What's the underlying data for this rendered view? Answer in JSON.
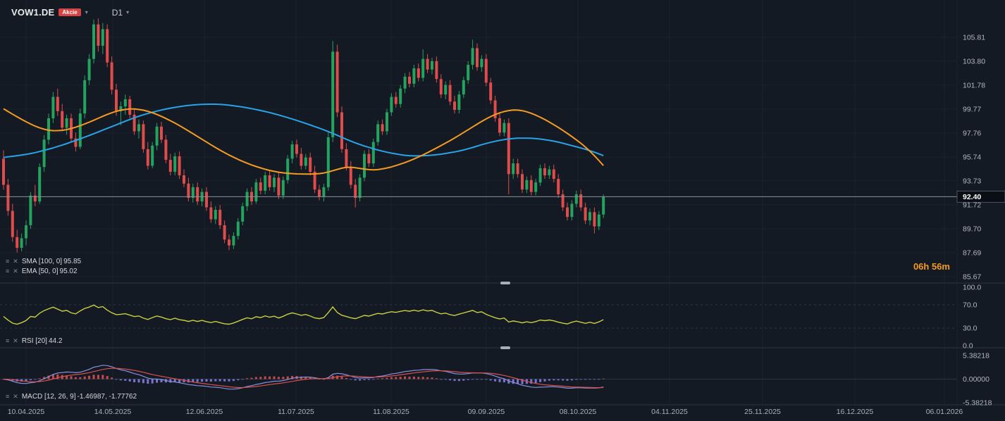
{
  "header": {
    "symbol": "VOW1.DE",
    "badge": "Akcie",
    "timeframe": "D1"
  },
  "legends": {
    "sma": {
      "label": "SMA [100, 0]",
      "value": "95.85"
    },
    "ema": {
      "label": "EMA [50, 0]",
      "value": "95.02"
    },
    "rsi": {
      "label": "RSI [20]",
      "value": "44.2"
    },
    "macd": {
      "label": "MACD [12, 26, 9]",
      "value": "-1.46987,  -1.77762"
    }
  },
  "countdown": "06h 56m",
  "colors": {
    "background": "#131a23",
    "grid": "#1c232e",
    "separator": "#2c3443",
    "axis_text": "#b2b6bf",
    "date_text": "#aab0ba",
    "legend_text": "#d6d9de",
    "symbol_text": "#e8eaed",
    "badge_red": "#d64242",
    "candle_up": "#24a35f",
    "candle_down": "#e04b4b",
    "sma_blue": "#2aa2e8",
    "ema_orange": "#f59a23",
    "rsi_yellow": "#c9cf42",
    "macd_line_blue": "#8691dc",
    "macd_signal_red": "#d94f4f",
    "hist_positive": "#c34b4b",
    "hist_negative": "#7a74cf",
    "price_line": "#8b909b",
    "current_price_bg": "#0b0e14",
    "current_price_text": "#ffffff",
    "accent_orange": "#f59a23"
  },
  "chart_data": {
    "type": "candlestick",
    "symbol": "VOW1.DE",
    "timeframe": "D1",
    "title": "VOW1.DE daily candlesticks with SMA(100), EMA(50), RSI(20) and MACD(12,26,9)",
    "ylim": [
      85.67,
      107.5
    ],
    "price_ticks": [
      105.81,
      103.8,
      101.78,
      99.77,
      97.76,
      95.74,
      93.73,
      91.72,
      89.7,
      87.69,
      85.67
    ],
    "current_price": 92.4,
    "x_labels": [
      "10.04.2025",
      "14.05.2025",
      "12.06.2025",
      "11.07.2025",
      "11.08.2025",
      "09.09.2025",
      "08.10.2025",
      "04.11.2025",
      "25.11.2025",
      "16.12.2025",
      "06.01.2026"
    ],
    "candles": [
      [
        95.6,
        96.3,
        93.0,
        93.4
      ],
      [
        93.4,
        93.9,
        90.8,
        91.2
      ],
      [
        91.2,
        91.8,
        88.6,
        89.0
      ],
      [
        89.0,
        89.6,
        87.7,
        88.1
      ],
      [
        88.1,
        89.3,
        87.8,
        88.9
      ],
      [
        88.9,
        90.4,
        88.3,
        90.0
      ],
      [
        90.0,
        92.8,
        89.7,
        92.5
      ],
      [
        92.5,
        93.4,
        91.6,
        92.0
      ],
      [
        92.0,
        95.2,
        91.8,
        94.9
      ],
      [
        94.9,
        97.6,
        94.5,
        97.2
      ],
      [
        97.2,
        99.4,
        96.8,
        99.0
      ],
      [
        99.0,
        101.2,
        98.6,
        100.8
      ],
      [
        100.8,
        101.5,
        99.2,
        99.6
      ],
      [
        99.6,
        100.2,
        97.9,
        98.2
      ],
      [
        98.2,
        99.3,
        97.6,
        99.0
      ],
      [
        99.0,
        99.4,
        97.0,
        97.3
      ],
      [
        97.3,
        97.8,
        96.2,
        96.6
      ],
      [
        96.6,
        99.8,
        96.4,
        99.4
      ],
      [
        99.4,
        102.6,
        99.0,
        102.2
      ],
      [
        102.2,
        104.4,
        101.8,
        104.0
      ],
      [
        104.0,
        107.3,
        103.6,
        106.9
      ],
      [
        106.9,
        107.4,
        104.6,
        105.1
      ],
      [
        105.1,
        107.0,
        104.4,
        106.5
      ],
      [
        106.5,
        106.9,
        103.3,
        103.7
      ],
      [
        103.7,
        104.2,
        101.0,
        101.4
      ],
      [
        101.4,
        101.9,
        99.2,
        99.6
      ],
      [
        99.6,
        100.4,
        98.4,
        100.0
      ],
      [
        100.0,
        101.0,
        99.3,
        100.6
      ],
      [
        100.6,
        100.9,
        99.0,
        99.3
      ],
      [
        99.3,
        99.8,
        97.6,
        97.9
      ],
      [
        97.9,
        98.9,
        97.3,
        98.5
      ],
      [
        98.5,
        98.8,
        96.1,
        96.4
      ],
      [
        96.4,
        97.0,
        94.7,
        95.0
      ],
      [
        95.0,
        97.0,
        94.8,
        96.7
      ],
      [
        96.7,
        98.6,
        96.3,
        98.3
      ],
      [
        98.3,
        98.7,
        96.9,
        97.2
      ],
      [
        97.2,
        97.6,
        95.2,
        95.5
      ],
      [
        95.5,
        96.0,
        94.2,
        94.5
      ],
      [
        94.5,
        96.1,
        94.2,
        95.8
      ],
      [
        95.8,
        96.2,
        93.9,
        94.2
      ],
      [
        94.2,
        94.7,
        93.2,
        93.5
      ],
      [
        93.5,
        94.0,
        92.0,
        92.3
      ],
      [
        92.3,
        93.5,
        91.9,
        93.2
      ],
      [
        93.2,
        93.6,
        91.7,
        92.0
      ],
      [
        92.0,
        93.1,
        91.6,
        92.8
      ],
      [
        92.8,
        93.2,
        91.2,
        91.5
      ],
      [
        91.5,
        92.0,
        90.2,
        90.5
      ],
      [
        90.5,
        91.6,
        90.1,
        91.3
      ],
      [
        91.3,
        91.7,
        89.7,
        90.0
      ],
      [
        90.0,
        90.4,
        88.5,
        88.8
      ],
      [
        88.8,
        89.2,
        87.9,
        88.3
      ],
      [
        88.3,
        89.4,
        88.0,
        89.1
      ],
      [
        89.1,
        90.6,
        88.8,
        90.3
      ],
      [
        90.3,
        91.9,
        90.0,
        91.6
      ],
      [
        91.6,
        93.1,
        91.2,
        92.8
      ],
      [
        92.8,
        93.2,
        91.7,
        92.0
      ],
      [
        92.0,
        93.9,
        91.8,
        93.6
      ],
      [
        93.6,
        94.0,
        92.6,
        92.9
      ],
      [
        92.9,
        94.5,
        92.6,
        94.2
      ],
      [
        94.2,
        94.6,
        92.9,
        93.2
      ],
      [
        93.2,
        94.3,
        92.8,
        94.0
      ],
      [
        94.0,
        94.4,
        92.2,
        92.5
      ],
      [
        92.5,
        94.1,
        92.2,
        93.8
      ],
      [
        93.8,
        95.9,
        93.5,
        95.6
      ],
      [
        95.6,
        97.1,
        95.2,
        96.8
      ],
      [
        96.8,
        97.2,
        95.7,
        96.0
      ],
      [
        96.0,
        96.5,
        94.7,
        95.0
      ],
      [
        95.0,
        96.0,
        94.7,
        95.7
      ],
      [
        95.7,
        96.1,
        94.2,
        94.5
      ],
      [
        94.5,
        95.0,
        92.7,
        93.0
      ],
      [
        93.0,
        93.4,
        92.1,
        92.4
      ],
      [
        92.4,
        93.5,
        92.0,
        93.2
      ],
      [
        93.2,
        97.8,
        92.9,
        97.4
      ],
      [
        97.4,
        105.5,
        97.0,
        104.6
      ],
      [
        104.6,
        105.2,
        99.1,
        99.5
      ],
      [
        99.5,
        100.0,
        96.1,
        96.4
      ],
      [
        96.4,
        96.9,
        94.6,
        94.9
      ],
      [
        94.9,
        95.4,
        93.1,
        93.4
      ],
      [
        93.4,
        93.9,
        91.5,
        92.3
      ],
      [
        92.3,
        94.3,
        92.0,
        94.0
      ],
      [
        94.0,
        96.3,
        93.7,
        96.0
      ],
      [
        96.0,
        96.4,
        94.9,
        95.2
      ],
      [
        95.2,
        97.3,
        94.9,
        97.0
      ],
      [
        97.0,
        98.8,
        96.7,
        98.5
      ],
      [
        98.5,
        98.9,
        97.6,
        97.9
      ],
      [
        97.9,
        99.8,
        97.6,
        99.5
      ],
      [
        99.5,
        101.1,
        99.2,
        100.8
      ],
      [
        100.8,
        101.2,
        99.9,
        100.2
      ],
      [
        100.2,
        101.8,
        99.9,
        101.5
      ],
      [
        101.5,
        102.8,
        101.1,
        102.5
      ],
      [
        102.5,
        102.9,
        101.6,
        101.9
      ],
      [
        101.9,
        103.5,
        101.6,
        103.2
      ],
      [
        103.2,
        103.6,
        102.1,
        102.4
      ],
      [
        102.4,
        104.8,
        102.1,
        104.0
      ],
      [
        104.0,
        104.4,
        102.8,
        103.1
      ],
      [
        103.1,
        104.1,
        102.7,
        103.8
      ],
      [
        103.8,
        104.2,
        102.0,
        102.3
      ],
      [
        102.3,
        102.7,
        100.7,
        101.0
      ],
      [
        101.0,
        102.1,
        100.6,
        101.8
      ],
      [
        101.8,
        102.2,
        100.1,
        100.4
      ],
      [
        100.4,
        100.9,
        99.4,
        99.7
      ],
      [
        99.7,
        101.3,
        99.4,
        101.0
      ],
      [
        101.0,
        102.5,
        100.7,
        102.2
      ],
      [
        102.2,
        103.8,
        101.9,
        103.5
      ],
      [
        103.5,
        105.6,
        103.1,
        104.9
      ],
      [
        104.9,
        105.3,
        103.0,
        103.3
      ],
      [
        103.3,
        104.3,
        102.9,
        104.0
      ],
      [
        104.0,
        104.4,
        101.7,
        102.0
      ],
      [
        102.0,
        102.4,
        100.2,
        100.5
      ],
      [
        100.5,
        100.9,
        98.7,
        99.0
      ],
      [
        99.0,
        99.4,
        97.5,
        97.8
      ],
      [
        97.8,
        98.9,
        97.5,
        98.6
      ],
      [
        98.6,
        99.0,
        92.6,
        94.3
      ],
      [
        94.3,
        95.6,
        93.9,
        95.2
      ],
      [
        95.2,
        95.6,
        94.0,
        94.3
      ],
      [
        94.3,
        94.7,
        92.7,
        93.0
      ],
      [
        93.0,
        94.1,
        92.7,
        93.8
      ],
      [
        93.8,
        94.2,
        92.5,
        92.8
      ],
      [
        92.8,
        93.9,
        92.5,
        93.6
      ],
      [
        93.6,
        95.1,
        93.3,
        94.8
      ],
      [
        94.8,
        95.2,
        93.9,
        94.2
      ],
      [
        94.2,
        95.0,
        93.9,
        94.7
      ],
      [
        94.7,
        95.1,
        93.6,
        93.9
      ],
      [
        93.9,
        94.3,
        92.3,
        92.6
      ],
      [
        92.6,
        93.0,
        91.2,
        91.5
      ],
      [
        91.5,
        91.9,
        90.4,
        90.7
      ],
      [
        90.7,
        92.1,
        90.4,
        91.8
      ],
      [
        91.8,
        92.9,
        91.5,
        92.6
      ],
      [
        92.6,
        93.0,
        91.2,
        91.5
      ],
      [
        91.5,
        91.9,
        90.1,
        90.4
      ],
      [
        90.4,
        91.4,
        90.0,
        91.1
      ],
      [
        91.1,
        91.5,
        89.3,
        89.9
      ],
      [
        89.9,
        91.2,
        89.6,
        90.9
      ],
      [
        90.9,
        92.6,
        90.6,
        92.4
      ]
    ],
    "overlays": [
      {
        "name": "SMA 100",
        "color": "#2aa2e8",
        "last": 95.85,
        "points": [
          [
            0,
            95.7
          ],
          [
            6,
            96.0
          ],
          [
            12,
            96.6
          ],
          [
            18,
            97.4
          ],
          [
            24,
            98.3
          ],
          [
            30,
            99.2
          ],
          [
            36,
            99.8
          ],
          [
            42,
            100.15
          ],
          [
            48,
            100.2
          ],
          [
            54,
            99.9
          ],
          [
            60,
            99.4
          ],
          [
            66,
            98.7
          ],
          [
            72,
            97.9
          ],
          [
            78,
            96.9
          ],
          [
            84,
            96.2
          ],
          [
            90,
            95.8
          ],
          [
            96,
            95.9
          ],
          [
            102,
            96.3
          ],
          [
            107,
            96.9
          ],
          [
            112,
            97.3
          ],
          [
            117,
            97.35
          ],
          [
            122,
            97.1
          ],
          [
            126,
            96.7
          ],
          [
            130,
            96.3
          ],
          [
            133,
            95.85
          ]
        ]
      },
      {
        "name": "EMA 50",
        "color": "#f59a23",
        "last": 95.02,
        "points": [
          [
            0,
            99.8
          ],
          [
            3,
            99.1
          ],
          [
            6,
            98.5
          ],
          [
            9,
            98.0
          ],
          [
            12,
            97.9
          ],
          [
            15,
            98.1
          ],
          [
            18,
            98.5
          ],
          [
            21,
            99.0
          ],
          [
            24,
            99.5
          ],
          [
            27,
            99.8
          ],
          [
            30,
            99.8
          ],
          [
            33,
            99.5
          ],
          [
            36,
            99.0
          ],
          [
            39,
            98.4
          ],
          [
            42,
            97.7
          ],
          [
            45,
            97.0
          ],
          [
            48,
            96.3
          ],
          [
            51,
            95.7
          ],
          [
            54,
            95.2
          ],
          [
            57,
            94.8
          ],
          [
            60,
            94.5
          ],
          [
            63,
            94.35
          ],
          [
            66,
            94.3
          ],
          [
            69,
            94.3
          ],
          [
            72,
            94.4
          ],
          [
            75,
            94.9
          ],
          [
            78,
            94.9
          ],
          [
            81,
            94.6
          ],
          [
            84,
            94.7
          ],
          [
            87,
            95.0
          ],
          [
            90,
            95.4
          ],
          [
            93,
            95.9
          ],
          [
            96,
            96.5
          ],
          [
            99,
            97.1
          ],
          [
            102,
            97.8
          ],
          [
            105,
            98.5
          ],
          [
            108,
            99.2
          ],
          [
            111,
            99.6
          ],
          [
            113,
            99.75
          ],
          [
            115,
            99.7
          ],
          [
            118,
            99.3
          ],
          [
            121,
            98.7
          ],
          [
            124,
            98.0
          ],
          [
            127,
            97.2
          ],
          [
            130,
            96.3
          ],
          [
            133,
            95.02
          ]
        ]
      }
    ],
    "indicators": [
      {
        "type": "RSI",
        "period": 20,
        "last": 44.2,
        "levels": [
          70,
          30
        ],
        "range": [
          0,
          100
        ],
        "color": "#c9cf42",
        "scale_labels": [
          "100.0",
          "70.0",
          "30.0",
          "0.0"
        ]
      },
      {
        "type": "MACD",
        "params": [
          12,
          26,
          9
        ],
        "last_macd": -1.46987,
        "last_signal": -1.77762,
        "range": [
          -5.38218,
          5.38218
        ],
        "scale_labels": [
          "5.38218",
          "0.00000",
          "-5.38218"
        ]
      }
    ]
  }
}
